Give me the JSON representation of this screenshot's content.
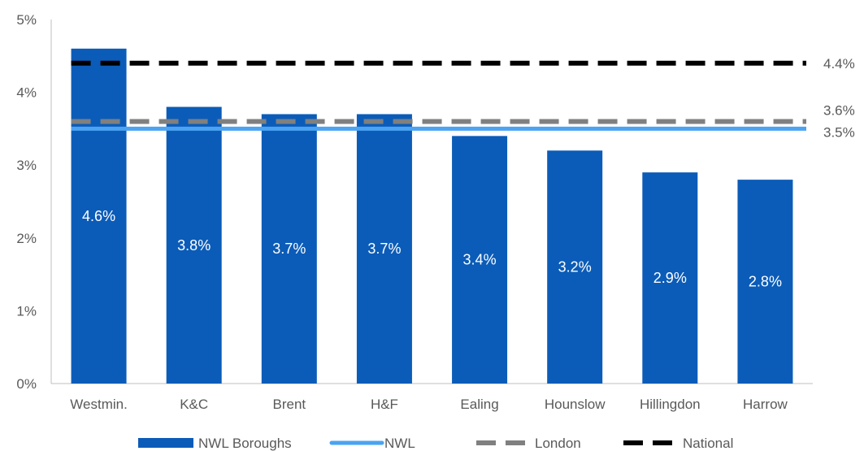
{
  "chart_data": {
    "type": "bar",
    "categories": [
      "Westmin.",
      "K&C",
      "Brent",
      "H&F",
      "Ealing",
      "Hounslow",
      "Hillingdon",
      "Harrow"
    ],
    "series": [
      {
        "name": "NWL Boroughs",
        "values": [
          4.6,
          3.8,
          3.7,
          3.7,
          3.4,
          3.2,
          2.9,
          2.8
        ],
        "data_labels": [
          "4.6%",
          "3.8%",
          "3.7%",
          "3.7%",
          "3.4%",
          "3.2%",
          "2.9%",
          "2.8%"
        ],
        "color": "#0B5CB8"
      }
    ],
    "reference_lines": [
      {
        "name": "NWL",
        "value": 3.5,
        "label": "3.5%",
        "style": "solid",
        "color": "#4BA3F2"
      },
      {
        "name": "London",
        "value": 3.6,
        "label": "3.6%",
        "style": "dashed",
        "color": "#808080"
      },
      {
        "name": "National",
        "value": 4.4,
        "label": "4.4%",
        "style": "dashed",
        "color": "#000000"
      }
    ],
    "ylim": [
      0,
      5
    ],
    "yticks": [
      0,
      1,
      2,
      3,
      4,
      5
    ],
    "ytick_labels": [
      "0%",
      "1%",
      "2%",
      "3%",
      "4%",
      "5%"
    ],
    "legend_position": "bottom",
    "legend": [
      "NWL Boroughs",
      "NWL",
      "London",
      "National"
    ],
    "grid": false
  }
}
